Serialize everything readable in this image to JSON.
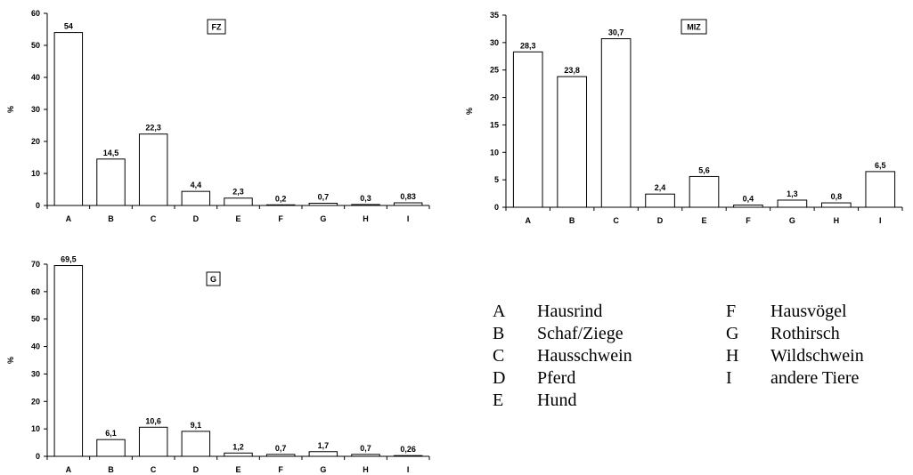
{
  "chart_data": [
    {
      "type": "bar",
      "title": "FZ",
      "ylabel": "%",
      "categories": [
        "A",
        "B",
        "C",
        "D",
        "E",
        "F",
        "G",
        "H",
        "I"
      ],
      "values": [
        54,
        14.5,
        22.3,
        4.4,
        2.3,
        0.2,
        0.7,
        0.3,
        0.83
      ],
      "value_labels": [
        "54",
        "14,5",
        "22,3",
        "4,4",
        "2,3",
        "0,2",
        "0,7",
        "0,3",
        "0,83"
      ],
      "ylim": [
        0,
        60
      ],
      "yticks": [
        0,
        10,
        20,
        30,
        40,
        50,
        60
      ],
      "grid": false,
      "legend": "none"
    },
    {
      "type": "bar",
      "title": "MIZ",
      "ylabel": "%",
      "categories": [
        "A",
        "B",
        "C",
        "D",
        "E",
        "F",
        "G",
        "H",
        "I"
      ],
      "values": [
        28.3,
        23.8,
        30.7,
        2.4,
        5.6,
        0.4,
        1.3,
        0.8,
        6.5
      ],
      "value_labels": [
        "28,3",
        "23,8",
        "30,7",
        "2,4",
        "5,6",
        "0,4",
        "1,3",
        "0,8",
        "6,5"
      ],
      "ylim": [
        0,
        35
      ],
      "yticks": [
        0,
        5,
        10,
        15,
        20,
        25,
        30,
        35
      ],
      "grid": false,
      "legend": "none"
    },
    {
      "type": "bar",
      "title": "G",
      "ylabel": "%",
      "categories": [
        "A",
        "B",
        "C",
        "D",
        "E",
        "F",
        "G",
        "H",
        "I"
      ],
      "values": [
        69.5,
        6.1,
        10.6,
        9.1,
        1.2,
        0.7,
        1.7,
        0.7,
        0.26
      ],
      "value_labels": [
        "69,5",
        "6,1",
        "10,6",
        "9,1",
        "1,2",
        "0,7",
        "1,7",
        "0,7",
        "0,26"
      ],
      "ylim": [
        0,
        70
      ],
      "yticks": [
        0,
        10,
        20,
        30,
        40,
        50,
        60,
        70
      ],
      "grid": false,
      "legend": "none"
    }
  ],
  "legend": [
    {
      "key": "A",
      "label": "Hausrind"
    },
    {
      "key": "B",
      "label": "Schaf/Ziege"
    },
    {
      "key": "C",
      "label": "Hausschwein"
    },
    {
      "key": "D",
      "label": "Pferd"
    },
    {
      "key": "E",
      "label": "Hund"
    },
    {
      "key": "F",
      "label": "Hausvögel"
    },
    {
      "key": "G",
      "label": "Rothirsch"
    },
    {
      "key": "H",
      "label": "Wildschwein"
    },
    {
      "key": "I",
      "label": "andere Tiere"
    }
  ]
}
